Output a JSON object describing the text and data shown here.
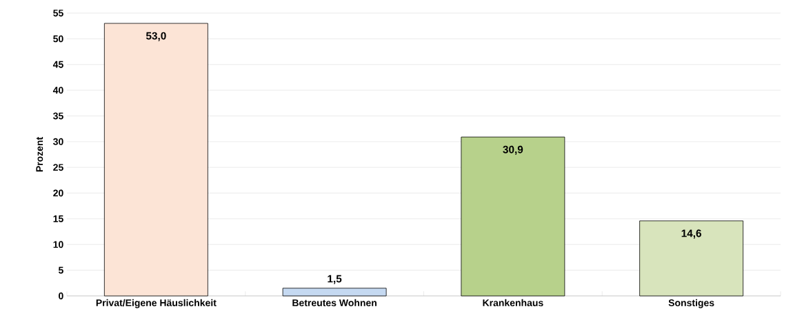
{
  "chart_data": {
    "type": "bar",
    "ylabel": "Prozent",
    "categories": [
      "Privat/Eigene Häuslichkeit",
      "Betreutes Wohnen",
      "Krankenhaus",
      "Sonstiges"
    ],
    "values": [
      53.0,
      1.5,
      30.9,
      14.6
    ],
    "colors": [
      "#fce4d6",
      "#c5d9f1",
      "#b7d18b",
      "#d8e4bc"
    ],
    "value_labels": [
      "53,0",
      "1,5",
      "30,9",
      "14,6"
    ],
    "ylim": [
      0,
      55
    ],
    "yticks": [
      0,
      5,
      10,
      15,
      20,
      25,
      30,
      35,
      40,
      45,
      50,
      55
    ],
    "grid": "y"
  }
}
